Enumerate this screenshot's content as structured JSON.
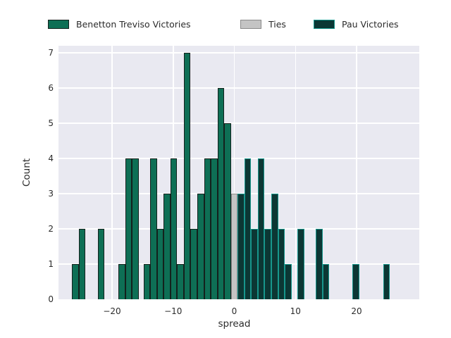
{
  "legend": {
    "items": [
      {
        "label": "Benetton Treviso Victories",
        "series": "treviso"
      },
      {
        "label": "Ties",
        "series": "ties"
      },
      {
        "label": "Pau Victories",
        "series": "pau"
      }
    ]
  },
  "axes": {
    "xlabel": "spread",
    "ylabel": "Count",
    "x_tick_labels": [
      "−20",
      "−10",
      "0",
      "10",
      "20"
    ],
    "x_tick_values": [
      -20,
      -10,
      0,
      10,
      20
    ],
    "y_tick_labels": [
      "0",
      "1",
      "2",
      "3",
      "4",
      "5",
      "6",
      "7"
    ],
    "y_tick_values": [
      0,
      1,
      2,
      3,
      4,
      5,
      6,
      7
    ]
  },
  "colors": {
    "page_bg": "#ffffff",
    "plot_bg": "#e9e9f1",
    "grid": "#ffffff",
    "text": "#2b2b2b",
    "treviso_fill": "#0e6f55",
    "treviso_edge": "#14211d",
    "ties_fill": "#c4c4c4",
    "ties_edge": "#8a8a8a",
    "pau_fill": "#0c3734",
    "pau_edge": "#17968c"
  },
  "chart_data": {
    "type": "bar",
    "subtype": "histogram",
    "title": "",
    "xlabel": "spread",
    "ylabel": "Count",
    "xlim": [
      -28.8,
      30.3
    ],
    "ylim": [
      0,
      7.2
    ],
    "bin_width": 1.1,
    "grid": true,
    "legend_position": "top",
    "series": [
      {
        "name": "Benetton Treviso Victories",
        "color": "#0e6f55",
        "edge_color": "#14211d",
        "bars": [
          {
            "x": -26.0,
            "count": 1
          },
          {
            "x": -24.9,
            "count": 2
          },
          {
            "x": -21.8,
            "count": 2
          },
          {
            "x": -18.4,
            "count": 1
          },
          {
            "x": -17.3,
            "count": 4
          },
          {
            "x": -16.2,
            "count": 4
          },
          {
            "x": -14.3,
            "count": 1
          },
          {
            "x": -13.2,
            "count": 4
          },
          {
            "x": -12.1,
            "count": 2
          },
          {
            "x": -11.0,
            "count": 3
          },
          {
            "x": -9.9,
            "count": 4
          },
          {
            "x": -8.8,
            "count": 1
          },
          {
            "x": -7.7,
            "count": 7
          },
          {
            "x": -6.6,
            "count": 2
          },
          {
            "x": -5.5,
            "count": 3
          },
          {
            "x": -4.4,
            "count": 4
          },
          {
            "x": -3.3,
            "count": 4
          },
          {
            "x": -2.2,
            "count": 6
          },
          {
            "x": -1.1,
            "count": 5
          }
        ]
      },
      {
        "name": "Ties",
        "color": "#c4c4c4",
        "edge_color": "#8a8a8a",
        "bars": [
          {
            "x": 0.0,
            "count": 3
          }
        ]
      },
      {
        "name": "Pau Victories",
        "color": "#0c3734",
        "edge_color": "#17968c",
        "bars": [
          {
            "x": 1.1,
            "count": 3
          },
          {
            "x": 2.2,
            "count": 4
          },
          {
            "x": 3.3,
            "count": 2
          },
          {
            "x": 4.4,
            "count": 4
          },
          {
            "x": 5.5,
            "count": 2
          },
          {
            "x": 6.6,
            "count": 3
          },
          {
            "x": 7.7,
            "count": 2
          },
          {
            "x": 8.8,
            "count": 1
          },
          {
            "x": 10.9,
            "count": 2
          },
          {
            "x": 13.9,
            "count": 2
          },
          {
            "x": 15.0,
            "count": 1
          },
          {
            "x": 19.9,
            "count": 1
          },
          {
            "x": 24.9,
            "count": 1
          }
        ]
      }
    ]
  }
}
